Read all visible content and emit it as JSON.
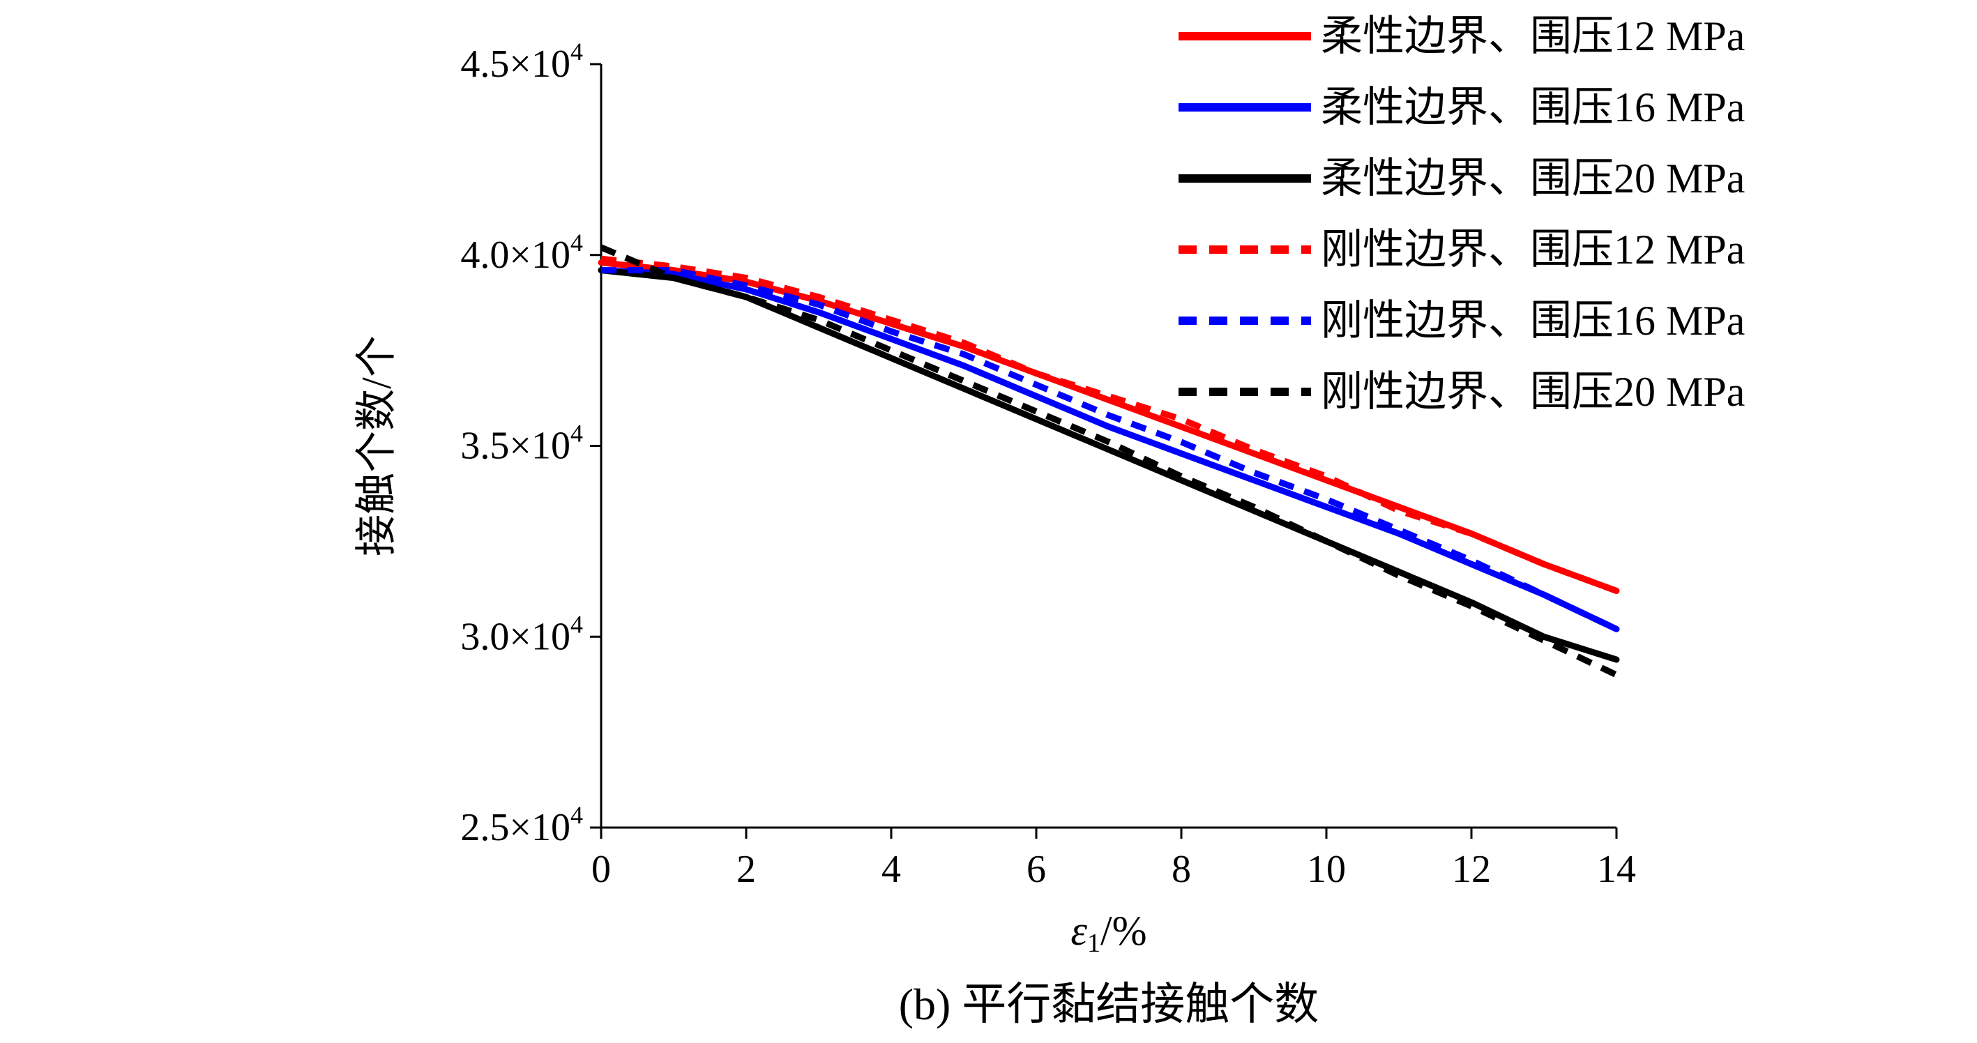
{
  "caption": "(b) 平行黏结接触个数",
  "chart_data": {
    "type": "line",
    "xlabel_symbol": "ε",
    "xlabel_sub": "1",
    "xlabel_unit": "/%",
    "ylabel": "接触个数/个",
    "xlim": [
      0,
      14
    ],
    "ylim": [
      25000,
      45000
    ],
    "x_ticks": [
      0,
      2,
      4,
      6,
      8,
      10,
      12,
      14
    ],
    "y_ticks": [
      {
        "value": 25000,
        "mantissa": "2.5×10",
        "exp": "4"
      },
      {
        "value": 30000,
        "mantissa": "3.0×10",
        "exp": "4"
      },
      {
        "value": 35000,
        "mantissa": "3.5×10",
        "exp": "4"
      },
      {
        "value": 40000,
        "mantissa": "4.0×10",
        "exp": "4"
      },
      {
        "value": 45000,
        "mantissa": "4.5×10",
        "exp": "4"
      }
    ],
    "x": [
      0,
      1,
      2,
      3,
      4,
      5,
      6,
      7,
      8,
      9,
      10,
      11,
      12,
      13,
      14
    ],
    "series": [
      {
        "name": "柔性边界、围压12 MPa",
        "color": "#ff0000",
        "dash": "solid",
        "values": [
          39800,
          39600,
          39300,
          38800,
          38200,
          37600,
          36900,
          36200,
          35500,
          34800,
          34100,
          33400,
          32700,
          31900,
          31200
        ]
      },
      {
        "name": "柔性边界、围压16 MPa",
        "color": "#0000ff",
        "dash": "solid",
        "values": [
          39600,
          39500,
          39100,
          38500,
          37800,
          37100,
          36300,
          35500,
          34800,
          34100,
          33400,
          32700,
          31900,
          31100,
          30200
        ]
      },
      {
        "name": "柔性边界、围压20 MPa",
        "color": "#000000",
        "dash": "solid",
        "values": [
          39600,
          39400,
          38900,
          38100,
          37300,
          36500,
          35700,
          34900,
          34100,
          33300,
          32500,
          31700,
          30900,
          30000,
          29400
        ]
      },
      {
        "name": "刚性边界、围压12 MPa",
        "color": "#ff0000",
        "dash": "dashed",
        "values": [
          39900,
          39700,
          39400,
          38900,
          38300,
          37700,
          36900,
          36300,
          35700,
          34900,
          34200,
          33300,
          32700,
          31900,
          31200
        ]
      },
      {
        "name": "刚性边界、围压16 MPa",
        "color": "#0000ff",
        "dash": "dashed",
        "values": [
          39600,
          39600,
          39200,
          38700,
          38000,
          37400,
          36600,
          35800,
          35100,
          34300,
          33600,
          32800,
          32000,
          31100,
          30200
        ]
      },
      {
        "name": "刚性边界、围压20 MPa",
        "color": "#000000",
        "dash": "dashed",
        "values": [
          40200,
          39400,
          38900,
          38300,
          37500,
          36700,
          35900,
          35100,
          34200,
          33400,
          32500,
          31600,
          30800,
          29900,
          29000
        ]
      }
    ],
    "legend_position": "top-right",
    "grid": false
  }
}
